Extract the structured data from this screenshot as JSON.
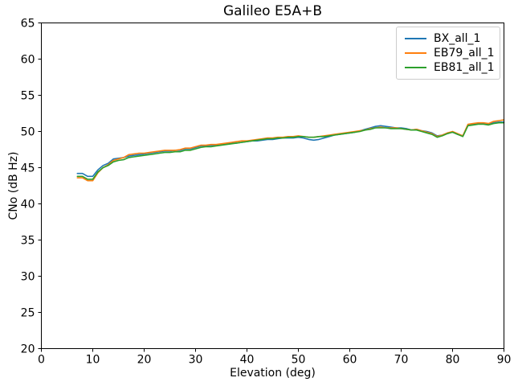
{
  "chart_data": {
    "type": "line",
    "title": "Galileo E5A+B",
    "xlabel": "Elevation (deg)",
    "ylabel": "CNo (dB Hz)",
    "xlim": [
      0,
      90
    ],
    "ylim": [
      20,
      65
    ],
    "xticks": [
      0,
      10,
      20,
      30,
      40,
      50,
      60,
      70,
      80,
      90
    ],
    "yticks": [
      20,
      25,
      30,
      35,
      40,
      45,
      50,
      55,
      60,
      65
    ],
    "grid": false,
    "legend_position": "upper right",
    "x": [
      7,
      8,
      9,
      10,
      11,
      12,
      13,
      14,
      15,
      16,
      17,
      18,
      19,
      20,
      21,
      22,
      23,
      24,
      25,
      26,
      27,
      28,
      29,
      30,
      31,
      32,
      33,
      34,
      35,
      36,
      37,
      38,
      39,
      40,
      41,
      42,
      43,
      44,
      45,
      46,
      47,
      48,
      49,
      50,
      51,
      52,
      53,
      54,
      55,
      56,
      57,
      58,
      59,
      60,
      61,
      62,
      63,
      64,
      65,
      66,
      67,
      68,
      69,
      70,
      71,
      72,
      73,
      74,
      75,
      76,
      77,
      78,
      79,
      80,
      81,
      82,
      83,
      84,
      85,
      86,
      87,
      88,
      89,
      90
    ],
    "series": [
      {
        "name": "BX_all_1",
        "color": "#1f77b4",
        "values": [
          44.2,
          44.2,
          43.8,
          43.8,
          44.7,
          45.3,
          45.6,
          46.2,
          46.3,
          46.4,
          46.6,
          46.7,
          46.8,
          46.9,
          47.0,
          47.1,
          47.2,
          47.3,
          47.3,
          47.4,
          47.4,
          47.6,
          47.6,
          47.8,
          48.0,
          48.0,
          48.1,
          48.1,
          48.2,
          48.3,
          48.4,
          48.4,
          48.5,
          48.6,
          48.7,
          48.7,
          48.8,
          48.9,
          48.9,
          49.0,
          49.1,
          49.1,
          49.1,
          49.2,
          49.1,
          48.9,
          48.8,
          48.9,
          49.1,
          49.3,
          49.5,
          49.6,
          49.7,
          49.8,
          49.9,
          50.1,
          50.3,
          50.5,
          50.7,
          50.8,
          50.7,
          50.6,
          50.5,
          50.5,
          50.4,
          50.2,
          50.3,
          50.1,
          50.0,
          49.8,
          49.4,
          49.5,
          49.8,
          49.9,
          49.6,
          49.4,
          50.9,
          51.0,
          51.1,
          51.1,
          51.0,
          51.2,
          51.3,
          51.3
        ]
      },
      {
        "name": "EB79_all_1",
        "color": "#ff7f0e",
        "values": [
          43.6,
          43.6,
          43.2,
          43.2,
          44.3,
          45.0,
          45.4,
          46.0,
          46.2,
          46.4,
          46.8,
          46.9,
          47.0,
          47.0,
          47.1,
          47.2,
          47.3,
          47.4,
          47.4,
          47.4,
          47.5,
          47.7,
          47.7,
          47.9,
          48.1,
          48.1,
          48.2,
          48.2,
          48.3,
          48.4,
          48.5,
          48.6,
          48.7,
          48.7,
          48.8,
          48.9,
          49.0,
          49.1,
          49.1,
          49.2,
          49.2,
          49.3,
          49.3,
          49.4,
          49.3,
          49.2,
          49.2,
          49.3,
          49.4,
          49.5,
          49.6,
          49.7,
          49.8,
          49.9,
          50.0,
          50.1,
          50.2,
          50.4,
          50.5,
          50.6,
          50.5,
          50.5,
          50.5,
          50.4,
          50.3,
          50.2,
          50.3,
          50.1,
          49.9,
          49.7,
          49.3,
          49.5,
          49.8,
          50.0,
          49.7,
          49.4,
          51.0,
          51.1,
          51.2,
          51.2,
          51.1,
          51.4,
          51.5,
          51.6
        ]
      },
      {
        "name": "EB81_all_1",
        "color": "#2ca02c",
        "values": [
          43.8,
          43.8,
          43.4,
          43.4,
          44.4,
          45.0,
          45.3,
          45.8,
          46.0,
          46.1,
          46.4,
          46.5,
          46.6,
          46.7,
          46.8,
          46.9,
          47.0,
          47.1,
          47.1,
          47.2,
          47.2,
          47.4,
          47.4,
          47.6,
          47.8,
          47.9,
          47.9,
          48.0,
          48.1,
          48.2,
          48.3,
          48.4,
          48.5,
          48.6,
          48.7,
          48.8,
          48.9,
          49.0,
          49.0,
          49.1,
          49.1,
          49.2,
          49.2,
          49.3,
          49.3,
          49.2,
          49.2,
          49.3,
          49.3,
          49.4,
          49.5,
          49.6,
          49.7,
          49.8,
          49.9,
          50.0,
          50.2,
          50.3,
          50.5,
          50.5,
          50.5,
          50.4,
          50.4,
          50.4,
          50.3,
          50.2,
          50.2,
          50.0,
          49.8,
          49.6,
          49.2,
          49.4,
          49.7,
          49.9,
          49.6,
          49.3,
          50.8,
          50.9,
          51.0,
          51.0,
          50.9,
          51.1,
          51.2,
          51.2
        ]
      }
    ]
  }
}
